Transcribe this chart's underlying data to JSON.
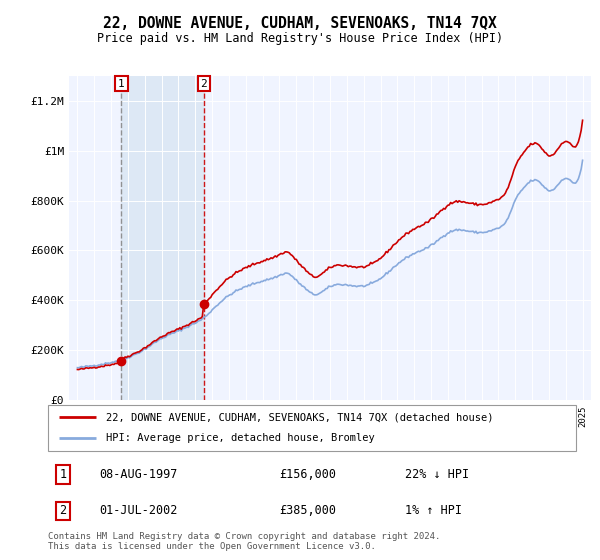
{
  "title": "22, DOWNE AVENUE, CUDHAM, SEVENOAKS, TN14 7QX",
  "subtitle": "Price paid vs. HM Land Registry's House Price Index (HPI)",
  "legend_line1": "22, DOWNE AVENUE, CUDHAM, SEVENOAKS, TN14 7QX (detached house)",
  "legend_line2": "HPI: Average price, detached house, Bromley",
  "sale1_date": "08-AUG-1997",
  "sale1_price": 156000,
  "sale1_pct": "22% ↓ HPI",
  "sale2_date": "01-JUL-2002",
  "sale2_price": 385000,
  "sale2_pct": "1% ↑ HPI",
  "footer": "Contains HM Land Registry data © Crown copyright and database right 2024.\nThis data is licensed under the Open Government Licence v3.0.",
  "line_color_red": "#cc0000",
  "line_color_blue": "#88aadd",
  "shade_color": "#dde8f5",
  "bg_plot": "#f0f4ff",
  "bg_white": "#ffffff",
  "sale1_year": 1997.614,
  "sale2_year": 2002.5,
  "ylim": [
    0,
    1300000
  ],
  "xlim_start": 1994.5,
  "xlim_end": 2025.5
}
